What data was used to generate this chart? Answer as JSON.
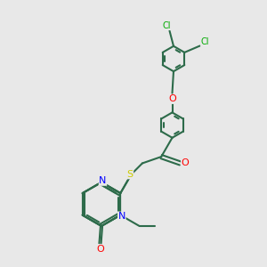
{
  "bg_color": "#e8e8e8",
  "bond_color": "#2d6b4a",
  "bond_width": 1.5,
  "atom_colors": {
    "N": "#0000ff",
    "O": "#ff0000",
    "S": "#cccc00",
    "Cl": "#00aa00",
    "C": "#2d6b4a"
  },
  "font_size": 8,
  "font_size_cl": 7
}
